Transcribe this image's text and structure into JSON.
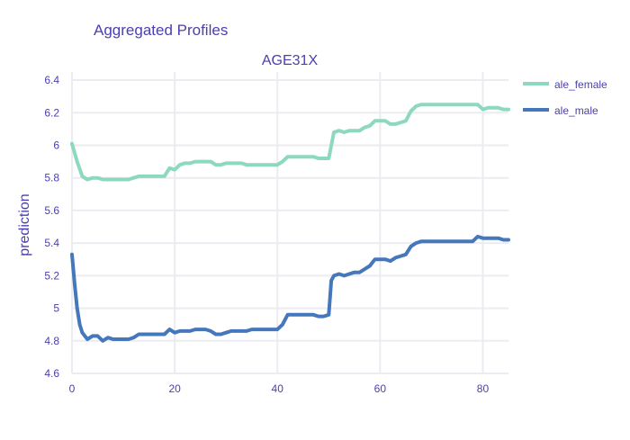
{
  "header": {
    "title": "Aggregated Profiles",
    "subtitle": "AGE31X"
  },
  "chart_data": {
    "type": "line",
    "title": "Aggregated Profiles",
    "subtitle": "AGE31X",
    "xlabel": "",
    "ylabel": "prediction",
    "xlim": [
      0,
      85
    ],
    "ylim": [
      4.6,
      6.45
    ],
    "x_ticks": [
      0,
      20,
      40,
      60,
      80
    ],
    "y_ticks": [
      4.6,
      4.8,
      5,
      5.2,
      5.4,
      5.6,
      5.8,
      6,
      6.2,
      6.4
    ],
    "x_tick_labels": [
      "0",
      "20",
      "40",
      "60",
      "80"
    ],
    "y_tick_labels": [
      "4.6",
      "4.8",
      "5",
      "5.2",
      "5.4",
      "5.6",
      "5.8",
      "6",
      "6.2",
      "6.4"
    ],
    "grid": true,
    "legend_position": "top-right",
    "series": [
      {
        "name": "ale_female",
        "color": "#8dd9c0",
        "x": [
          0,
          1,
          2,
          3,
          4,
          5,
          6,
          7,
          8,
          9,
          10,
          11,
          12,
          13,
          14,
          15,
          16,
          17,
          18,
          19,
          20,
          21,
          22,
          23,
          24,
          25,
          26,
          27,
          28,
          29,
          30,
          31,
          32,
          33,
          34,
          35,
          36,
          37,
          38,
          39,
          40,
          41,
          42,
          43,
          44,
          45,
          46,
          47,
          48,
          49,
          50,
          51,
          52,
          53,
          54,
          55,
          56,
          57,
          58,
          59,
          60,
          61,
          62,
          63,
          64,
          65,
          66,
          67,
          68,
          69,
          70,
          72,
          74,
          76,
          78,
          79,
          80,
          81,
          82,
          83,
          84,
          85
        ],
        "values": [
          6.01,
          5.9,
          5.81,
          5.79,
          5.8,
          5.8,
          5.79,
          5.79,
          5.79,
          5.79,
          5.79,
          5.79,
          5.8,
          5.81,
          5.81,
          5.81,
          5.81,
          5.81,
          5.81,
          5.86,
          5.85,
          5.88,
          5.89,
          5.89,
          5.9,
          5.9,
          5.9,
          5.9,
          5.88,
          5.88,
          5.89,
          5.89,
          5.89,
          5.89,
          5.88,
          5.88,
          5.88,
          5.88,
          5.88,
          5.88,
          5.88,
          5.9,
          5.93,
          5.93,
          5.93,
          5.93,
          5.93,
          5.93,
          5.92,
          5.92,
          5.92,
          6.08,
          6.09,
          6.08,
          6.09,
          6.09,
          6.09,
          6.11,
          6.12,
          6.15,
          6.15,
          6.15,
          6.13,
          6.13,
          6.14,
          6.15,
          6.21,
          6.24,
          6.25,
          6.25,
          6.25,
          6.25,
          6.25,
          6.25,
          6.25,
          6.25,
          6.22,
          6.23,
          6.23,
          6.23,
          6.22,
          6.22
        ]
      },
      {
        "name": "ale_male",
        "color": "#4477bb",
        "x": [
          0,
          0.5,
          1,
          1.5,
          2,
          3,
          4,
          5,
          6,
          7,
          8,
          9,
          10,
          11,
          12,
          13,
          14,
          15,
          16,
          17,
          18,
          19,
          20,
          21,
          22,
          23,
          24,
          25,
          26,
          27,
          28,
          29,
          30,
          31,
          32,
          33,
          34,
          35,
          36,
          37,
          38,
          39,
          40,
          41,
          42,
          43,
          44,
          45,
          46,
          47,
          48,
          49,
          50,
          50.5,
          51,
          52,
          53,
          54,
          55,
          56,
          57,
          58,
          59,
          60,
          61,
          62,
          63,
          64,
          65,
          66,
          67,
          68,
          69,
          70,
          72,
          74,
          76,
          78,
          79,
          80,
          81,
          82,
          83,
          84,
          85
        ],
        "values": [
          5.33,
          5.15,
          5.0,
          4.9,
          4.85,
          4.81,
          4.83,
          4.83,
          4.8,
          4.82,
          4.81,
          4.81,
          4.81,
          4.81,
          4.82,
          4.84,
          4.84,
          4.84,
          4.84,
          4.84,
          4.84,
          4.87,
          4.85,
          4.86,
          4.86,
          4.86,
          4.87,
          4.87,
          4.87,
          4.86,
          4.84,
          4.84,
          4.85,
          4.86,
          4.86,
          4.86,
          4.86,
          4.87,
          4.87,
          4.87,
          4.87,
          4.87,
          4.87,
          4.9,
          4.96,
          4.96,
          4.96,
          4.96,
          4.96,
          4.96,
          4.95,
          4.95,
          4.96,
          5.17,
          5.2,
          5.21,
          5.2,
          5.21,
          5.22,
          5.22,
          5.24,
          5.26,
          5.3,
          5.3,
          5.3,
          5.29,
          5.31,
          5.32,
          5.33,
          5.38,
          5.4,
          5.41,
          5.41,
          5.41,
          5.41,
          5.41,
          5.41,
          5.41,
          5.44,
          5.43,
          5.43,
          5.43,
          5.43,
          5.42,
          5.42
        ]
      }
    ]
  }
}
